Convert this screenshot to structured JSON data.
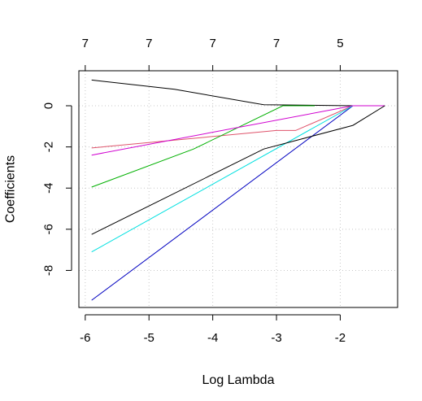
{
  "chart_data": {
    "type": "line",
    "xlabel": "Log Lambda",
    "ylabel": "Coefficients",
    "xlim": [
      -6.1,
      -1.1
    ],
    "ylim": [
      -9.8,
      1.7
    ],
    "x_ticks": [
      -6,
      -5,
      -4,
      -3,
      -2
    ],
    "y_ticks": [
      -8,
      -6,
      -4,
      -2,
      0
    ],
    "top_axis": {
      "ticks": [
        -6,
        -5,
        -4,
        -3,
        -2
      ],
      "labels": [
        "7",
        "7",
        "7",
        "7",
        "5"
      ]
    },
    "grid": true,
    "grid_style": "dotted",
    "series": [
      {
        "color": "#000000",
        "points": [
          [
            -5.9,
            1.25
          ],
          [
            -4.6,
            0.8
          ],
          [
            -3.2,
            0.05
          ],
          [
            -1.8,
            0.0
          ]
        ]
      },
      {
        "color": "#DF536B",
        "points": [
          [
            -5.9,
            -2.05
          ],
          [
            -3.0,
            -1.2
          ],
          [
            -2.7,
            -1.2
          ],
          [
            -1.8,
            0.0
          ]
        ]
      },
      {
        "color": "#00B000",
        "points": [
          [
            -5.9,
            -3.95
          ],
          [
            -4.3,
            -2.1
          ],
          [
            -2.9,
            0.0
          ],
          [
            -2.4,
            0.0
          ]
        ]
      },
      {
        "color": "#0000C0",
        "points": [
          [
            -5.9,
            -9.45
          ],
          [
            -1.8,
            0.0
          ]
        ]
      },
      {
        "color": "#00E0E0",
        "points": [
          [
            -5.9,
            -7.1
          ],
          [
            -1.8,
            0.0
          ]
        ]
      },
      {
        "color": "#D000D0",
        "points": [
          [
            -5.9,
            -2.4
          ],
          [
            -1.8,
            0.0
          ],
          [
            -1.3,
            0.0
          ]
        ]
      },
      {
        "color": "#000000",
        "points": [
          [
            -5.9,
            -6.25
          ],
          [
            -3.2,
            -2.1
          ],
          [
            -1.8,
            -0.95
          ],
          [
            -1.3,
            0.0
          ]
        ]
      }
    ]
  }
}
